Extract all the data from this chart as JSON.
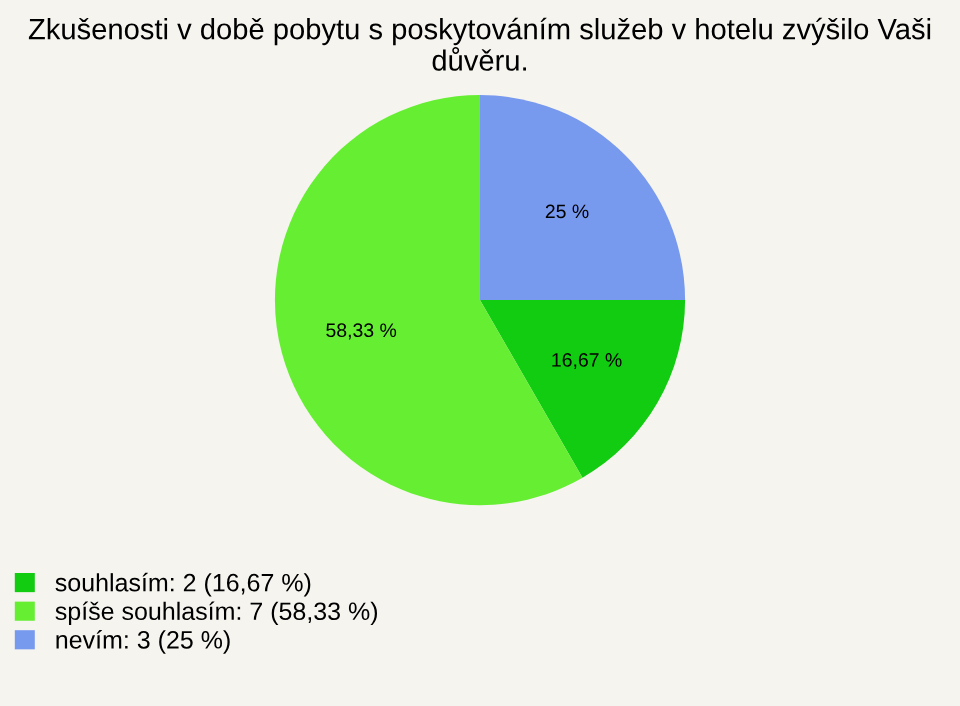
{
  "chart_data": {
    "type": "pie",
    "title": "Zkušenosti v době pobytu s poskytováním služeb v hotelu zvýšilo Vaši důvěru.",
    "categories": [
      "souhlasím: 2 (16,67 %)",
      "spíše souhlasím: 7 (58,33 %)",
      "nevím: 3 (25 %)"
    ],
    "values": [
      16.67,
      58.33,
      25
    ],
    "colors": [
      "#11cc11",
      "#66ee33",
      "#7799ee"
    ],
    "value_labels": [
      "16,67 %",
      "58,33 %",
      "25 %"
    ],
    "legend": "bottom left"
  }
}
